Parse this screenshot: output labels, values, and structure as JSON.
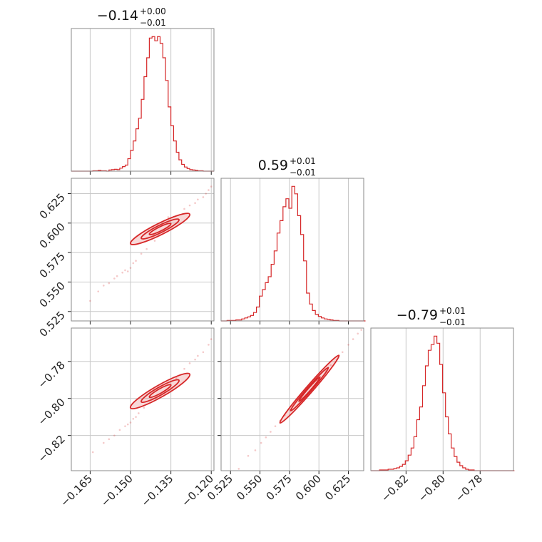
{
  "chart_data": {
    "type": "corner",
    "color": "#d62728",
    "parameters": [
      {
        "range": [
          -0.172,
          -0.119
        ],
        "ticks": [
          -0.165,
          -0.15,
          -0.135,
          -0.12
        ],
        "tick_labels": [
          "−0.165",
          "−0.150",
          "−0.135",
          "−0.120"
        ],
        "title": {
          "value": "−0.14",
          "plus": "+0.00",
          "minus": "−0.01"
        },
        "hist": {
          "start": -0.172,
          "width": 0.001,
          "counts": [
            0,
            0,
            0,
            0,
            0,
            0,
            0,
            0,
            1,
            1,
            2,
            1,
            1,
            0,
            3,
            4,
            5,
            4,
            8,
            12,
            16,
            33,
            55,
            80,
            112,
            140,
            190,
            250,
            300,
            352,
            356,
            345,
            356,
            338,
            300,
            240,
            170,
            120,
            80,
            50,
            30,
            18,
            11,
            7,
            4,
            3,
            2,
            1,
            1,
            0,
            0,
            0,
            0
          ]
        }
      },
      {
        "range": [
          0.517,
          0.638
        ],
        "ticks": [
          0.525,
          0.55,
          0.575,
          0.6,
          0.625
        ],
        "tick_labels": [
          "0.525",
          "0.550",
          "0.575",
          "0.600",
          "0.625"
        ],
        "title": {
          "value": "0.59",
          "plus": "+0.01",
          "minus": "−0.01"
        },
        "hist": {
          "start": 0.517,
          "width": 0.0025,
          "counts": [
            0,
            0,
            1,
            1,
            1,
            2,
            2,
            4,
            6,
            8,
            11,
            17,
            28,
            50,
            63,
            77,
            89,
            114,
            141,
            177,
            202,
            230,
            246,
            227,
            271,
            256,
            212,
            174,
            121,
            56,
            34,
            21,
            13,
            9,
            6,
            4,
            3,
            2,
            1,
            1,
            0,
            0,
            0,
            0,
            0,
            0,
            0,
            0,
            0
          ]
        }
      },
      {
        "range": [
          -0.839,
          -0.762
        ],
        "ticks": [
          -0.82,
          -0.8,
          -0.78
        ],
        "tick_labels": [
          "−0.82",
          "−0.80",
          "−0.78"
        ],
        "title": {
          "value": "−0.79",
          "plus": "+0.01",
          "minus": "−0.01"
        },
        "hist": {
          "start": -0.839,
          "width": 0.00155,
          "counts": [
            0,
            0,
            0,
            1,
            1,
            1,
            2,
            2,
            3,
            4,
            6,
            9,
            14,
            22,
            32,
            48,
            72,
            90,
            120,
            148,
            170,
            178,
            190,
            180,
            150,
            110,
            76,
            52,
            32,
            20,
            12,
            7,
            4,
            2,
            1,
            1,
            0,
            0,
            0,
            0,
            0,
            0,
            0,
            0,
            0,
            0,
            0,
            0,
            0,
            0
          ]
        }
      }
    ],
    "pairs": [
      {
        "x": 0,
        "y": 1,
        "contour_rx": [
          0.004,
          0.007,
          0.011
        ],
        "contour_ry": [
          0.0018,
          0.0031,
          0.0048
        ],
        "center": [
          -0.139,
          0.595
        ],
        "slope": 1.14,
        "scatter": [
          [
            -0.165,
            0.534
          ],
          [
            -0.162,
            0.542
          ],
          [
            -0.16,
            0.547
          ],
          [
            -0.158,
            0.549
          ],
          [
            -0.156,
            0.553
          ],
          [
            -0.155,
            0.555
          ],
          [
            -0.153,
            0.558
          ],
          [
            -0.152,
            0.56
          ],
          [
            -0.15,
            0.562
          ],
          [
            -0.149,
            0.566
          ],
          [
            -0.148,
            0.568
          ],
          [
            -0.13,
            0.612
          ],
          [
            -0.128,
            0.615
          ],
          [
            -0.126,
            0.617
          ],
          [
            -0.125,
            0.62
          ],
          [
            -0.123,
            0.622
          ],
          [
            -0.122,
            0.625
          ],
          [
            -0.121,
            0.628
          ],
          [
            -0.12,
            0.631
          ],
          [
            -0.136,
            0.605
          ],
          [
            -0.144,
            0.578
          ],
          [
            -0.141,
            0.585
          ],
          [
            -0.151,
            0.559
          ],
          [
            -0.146,
            0.574
          ]
        ]
      },
      {
        "x": 0,
        "y": 2,
        "contour_rx": [
          0.004,
          0.007,
          0.011
        ],
        "contour_ry": [
          0.0012,
          0.0021,
          0.0032
        ],
        "center": [
          -0.139,
          -0.796
        ],
        "slope": 0.83,
        "scatter": [
          [
            -0.164,
            -0.829
          ],
          [
            -0.16,
            -0.824
          ],
          [
            -0.158,
            -0.822
          ],
          [
            -0.156,
            -0.82
          ],
          [
            -0.154,
            -0.817
          ],
          [
            -0.152,
            -0.815
          ],
          [
            -0.15,
            -0.813
          ],
          [
            -0.149,
            -0.811
          ],
          [
            -0.148,
            -0.81
          ],
          [
            -0.13,
            -0.784
          ],
          [
            -0.128,
            -0.781
          ],
          [
            -0.126,
            -0.779
          ],
          [
            -0.125,
            -0.777
          ],
          [
            -0.123,
            -0.775
          ],
          [
            -0.121,
            -0.771
          ],
          [
            -0.12,
            -0.768
          ],
          [
            -0.145,
            -0.805
          ],
          [
            -0.133,
            -0.789
          ],
          [
            -0.151,
            -0.814
          ],
          [
            -0.147,
            -0.808
          ]
        ]
      },
      {
        "x": 1,
        "y": 2,
        "contour_rx": [
          0.009,
          0.016,
          0.025
        ],
        "contour_ry": [
          0.0007,
          0.0012,
          0.0019
        ],
        "center": [
          0.592,
          -0.795
        ],
        "slope": 0.73,
        "scatter": [
          [
            0.532,
            -0.838
          ],
          [
            0.54,
            -0.831
          ],
          [
            0.546,
            -0.828
          ],
          [
            0.551,
            -0.824
          ],
          [
            0.555,
            -0.821
          ],
          [
            0.559,
            -0.818
          ],
          [
            0.563,
            -0.815
          ],
          [
            0.567,
            -0.812
          ],
          [
            0.571,
            -0.809
          ],
          [
            0.61,
            -0.782
          ],
          [
            0.615,
            -0.779
          ],
          [
            0.62,
            -0.775
          ],
          [
            0.625,
            -0.771
          ],
          [
            0.629,
            -0.768
          ],
          [
            0.633,
            -0.765
          ],
          [
            0.636,
            -0.763
          ],
          [
            0.606,
            -0.785
          ],
          [
            0.576,
            -0.806
          ]
        ]
      }
    ]
  }
}
